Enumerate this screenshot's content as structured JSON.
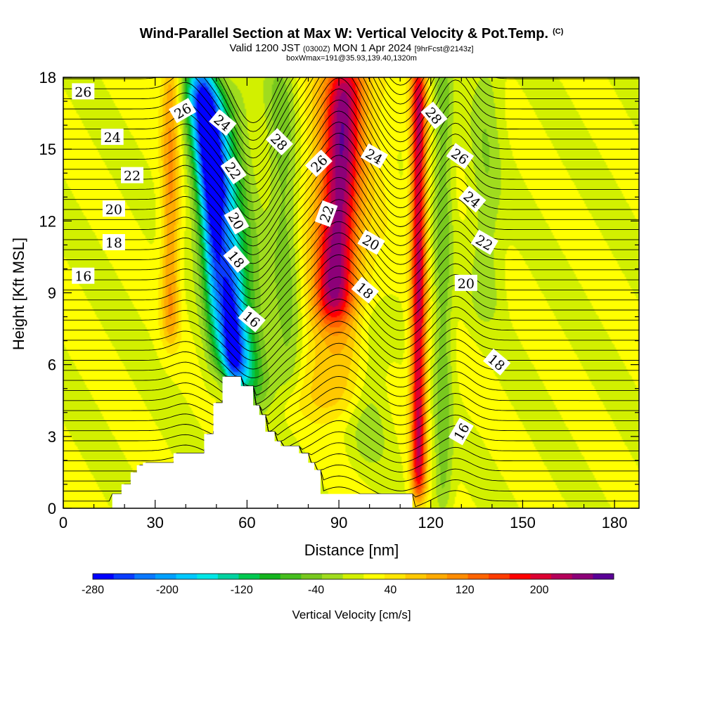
{
  "header": {
    "title": "Wind-Parallel Section at Max W: Vertical Velocity & Pot.Temp.",
    "copyright": "(C)",
    "valid_prefix": "Valid 1200 JST",
    "valid_zulu": "(0300Z)",
    "valid_date": "MON 1 Apr 2024",
    "forecast": "[9hrFcst@2143z]",
    "box_info": "boxWmax=191@35.93,139.40,1320m"
  },
  "chart_data": {
    "type": "heatmap",
    "xlabel": "Distance [nm]",
    "ylabel": "Height [Kft MSL]",
    "xlim": [
      0,
      188
    ],
    "ylim": [
      0,
      18
    ],
    "xticks": [
      0,
      30,
      60,
      90,
      120,
      150,
      180
    ],
    "yticks": [
      0,
      3,
      6,
      9,
      12,
      15,
      18
    ],
    "colorbar": {
      "label": "Vertical Velocity [cm/s]",
      "range": [
        -280,
        280
      ],
      "tick_values": [
        -280,
        -200,
        -120,
        -40,
        40,
        120,
        200
      ],
      "colors": [
        "#0000ff",
        "#0a3cff",
        "#0a78ff",
        "#00a0ff",
        "#00c8ff",
        "#00e6e6",
        "#00d2a0",
        "#00c850",
        "#14b41e",
        "#46be1e",
        "#78c81e",
        "#a0dc1e",
        "#d2f000",
        "#ffff00",
        "#ffe600",
        "#ffc800",
        "#ffaa00",
        "#ff8c00",
        "#ff6400",
        "#ff3c00",
        "#ff0000",
        "#dc0032",
        "#b4005a",
        "#8c0078",
        "#5a0096"
      ]
    },
    "velocity_features": [
      {
        "x": 55,
        "y_bottom": 5.5,
        "y_top": 18,
        "lean": 10,
        "width": 5,
        "peak": -260,
        "name": "downdraft"
      },
      {
        "x": 60,
        "y_bottom": 4.5,
        "y_top": 17,
        "lean": 10,
        "width": 8,
        "peak": -120
      },
      {
        "x": 74,
        "y_bottom": 5,
        "y_top": 18,
        "lean": 3,
        "width": 5,
        "peak": -60
      },
      {
        "x": 88,
        "y_bottom": 8,
        "y_top": 18,
        "lean": -4,
        "width": 6,
        "peak": 170,
        "name": "updraft"
      },
      {
        "x": 88,
        "y_bottom": 4,
        "y_top": 18,
        "lean": -4,
        "width": 12,
        "peak": 70
      },
      {
        "x": 116,
        "y_bottom": 0.5,
        "y_top": 18,
        "lean": 0,
        "width": 2.5,
        "peak": 200,
        "name": "updraft"
      },
      {
        "x": 124,
        "y_bottom": 0,
        "y_top": 18,
        "lean": 0,
        "width": 3,
        "peak": -60
      },
      {
        "x": 138,
        "y_bottom": 8,
        "y_top": 18,
        "lean": 0,
        "width": 5,
        "peak": -40
      },
      {
        "x": 35,
        "y_bottom": 7,
        "y_top": 18,
        "lean": 0,
        "width": 3,
        "peak": 90
      },
      {
        "x": 52,
        "y_bottom": 5,
        "y_top": 12,
        "lean": 0,
        "width": 3,
        "peak": 80
      },
      {
        "x": 100,
        "y_bottom": 2,
        "y_top": 8,
        "lean": 0,
        "width": 6,
        "peak": -40
      }
    ],
    "terrain": [
      [
        16,
        0.3
      ],
      [
        16,
        0.6
      ],
      [
        19,
        0.6
      ],
      [
        19,
        1.0
      ],
      [
        22,
        1.0
      ],
      [
        22,
        1.5
      ],
      [
        24,
        1.5
      ],
      [
        24,
        1.8
      ],
      [
        26,
        1.8
      ],
      [
        26,
        1.9
      ],
      [
        36,
        1.9
      ],
      [
        36,
        2.3
      ],
      [
        46,
        2.3
      ],
      [
        46,
        3.1
      ],
      [
        49,
        3.1
      ],
      [
        49,
        4.4
      ],
      [
        52,
        4.4
      ],
      [
        52,
        5.5
      ],
      [
        58,
        5.5
      ],
      [
        58,
        5.1
      ],
      [
        62,
        5.1
      ],
      [
        62,
        4.3
      ],
      [
        64,
        4.3
      ],
      [
        64,
        3.9
      ],
      [
        66,
        3.9
      ],
      [
        66,
        3.2
      ],
      [
        69,
        3.2
      ],
      [
        69,
        2.8
      ],
      [
        71,
        2.8
      ],
      [
        71,
        2.6
      ],
      [
        77,
        2.6
      ],
      [
        77,
        2.3
      ],
      [
        80,
        2.3
      ],
      [
        80,
        1.9
      ],
      [
        82,
        1.9
      ],
      [
        82,
        1.6
      ],
      [
        84,
        1.6
      ],
      [
        84,
        0.6
      ],
      [
        114,
        0.6
      ],
      [
        114,
        0.3
      ]
    ],
    "isentropes": {
      "units": "C",
      "labels": [
        {
          "text": "26",
          "x": 6.5,
          "y": 17.4
        },
        {
          "text": "24",
          "x": 16,
          "y": 15.5
        },
        {
          "text": "22",
          "x": 22.5,
          "y": 13.9
        },
        {
          "text": "20",
          "x": 16.5,
          "y": 12.5
        },
        {
          "text": "18",
          "x": 16.5,
          "y": 11.1
        },
        {
          "text": "16",
          "x": 6.5,
          "y": 9.7
        },
        {
          "text": "26",
          "x": 39,
          "y": 16.6
        },
        {
          "text": "24",
          "x": 52,
          "y": 16.1
        },
        {
          "text": "22",
          "x": 55.5,
          "y": 14.1
        },
        {
          "text": "20",
          "x": 56.5,
          "y": 12.0
        },
        {
          "text": "18",
          "x": 56.5,
          "y": 10.4
        },
        {
          "text": "16",
          "x": 61.5,
          "y": 7.9
        },
        {
          "text": "28",
          "x": 70.5,
          "y": 15.3
        },
        {
          "text": "26",
          "x": 83.5,
          "y": 14.4
        },
        {
          "text": "22",
          "x": 86,
          "y": 12.3
        },
        {
          "text": "24",
          "x": 101.5,
          "y": 14.7
        },
        {
          "text": "20",
          "x": 100.5,
          "y": 11.1
        },
        {
          "text": "18",
          "x": 98.5,
          "y": 9.1
        },
        {
          "text": "28",
          "x": 121,
          "y": 16.4
        },
        {
          "text": "26",
          "x": 129.5,
          "y": 14.7
        },
        {
          "text": "24",
          "x": 133.5,
          "y": 12.9
        },
        {
          "text": "22",
          "x": 137.5,
          "y": 11.1
        },
        {
          "text": "20",
          "x": 131.5,
          "y": 9.4
        },
        {
          "text": "18",
          "x": 141.5,
          "y": 6.1
        },
        {
          "text": "16",
          "x": 130,
          "y": 3.2
        }
      ]
    }
  }
}
